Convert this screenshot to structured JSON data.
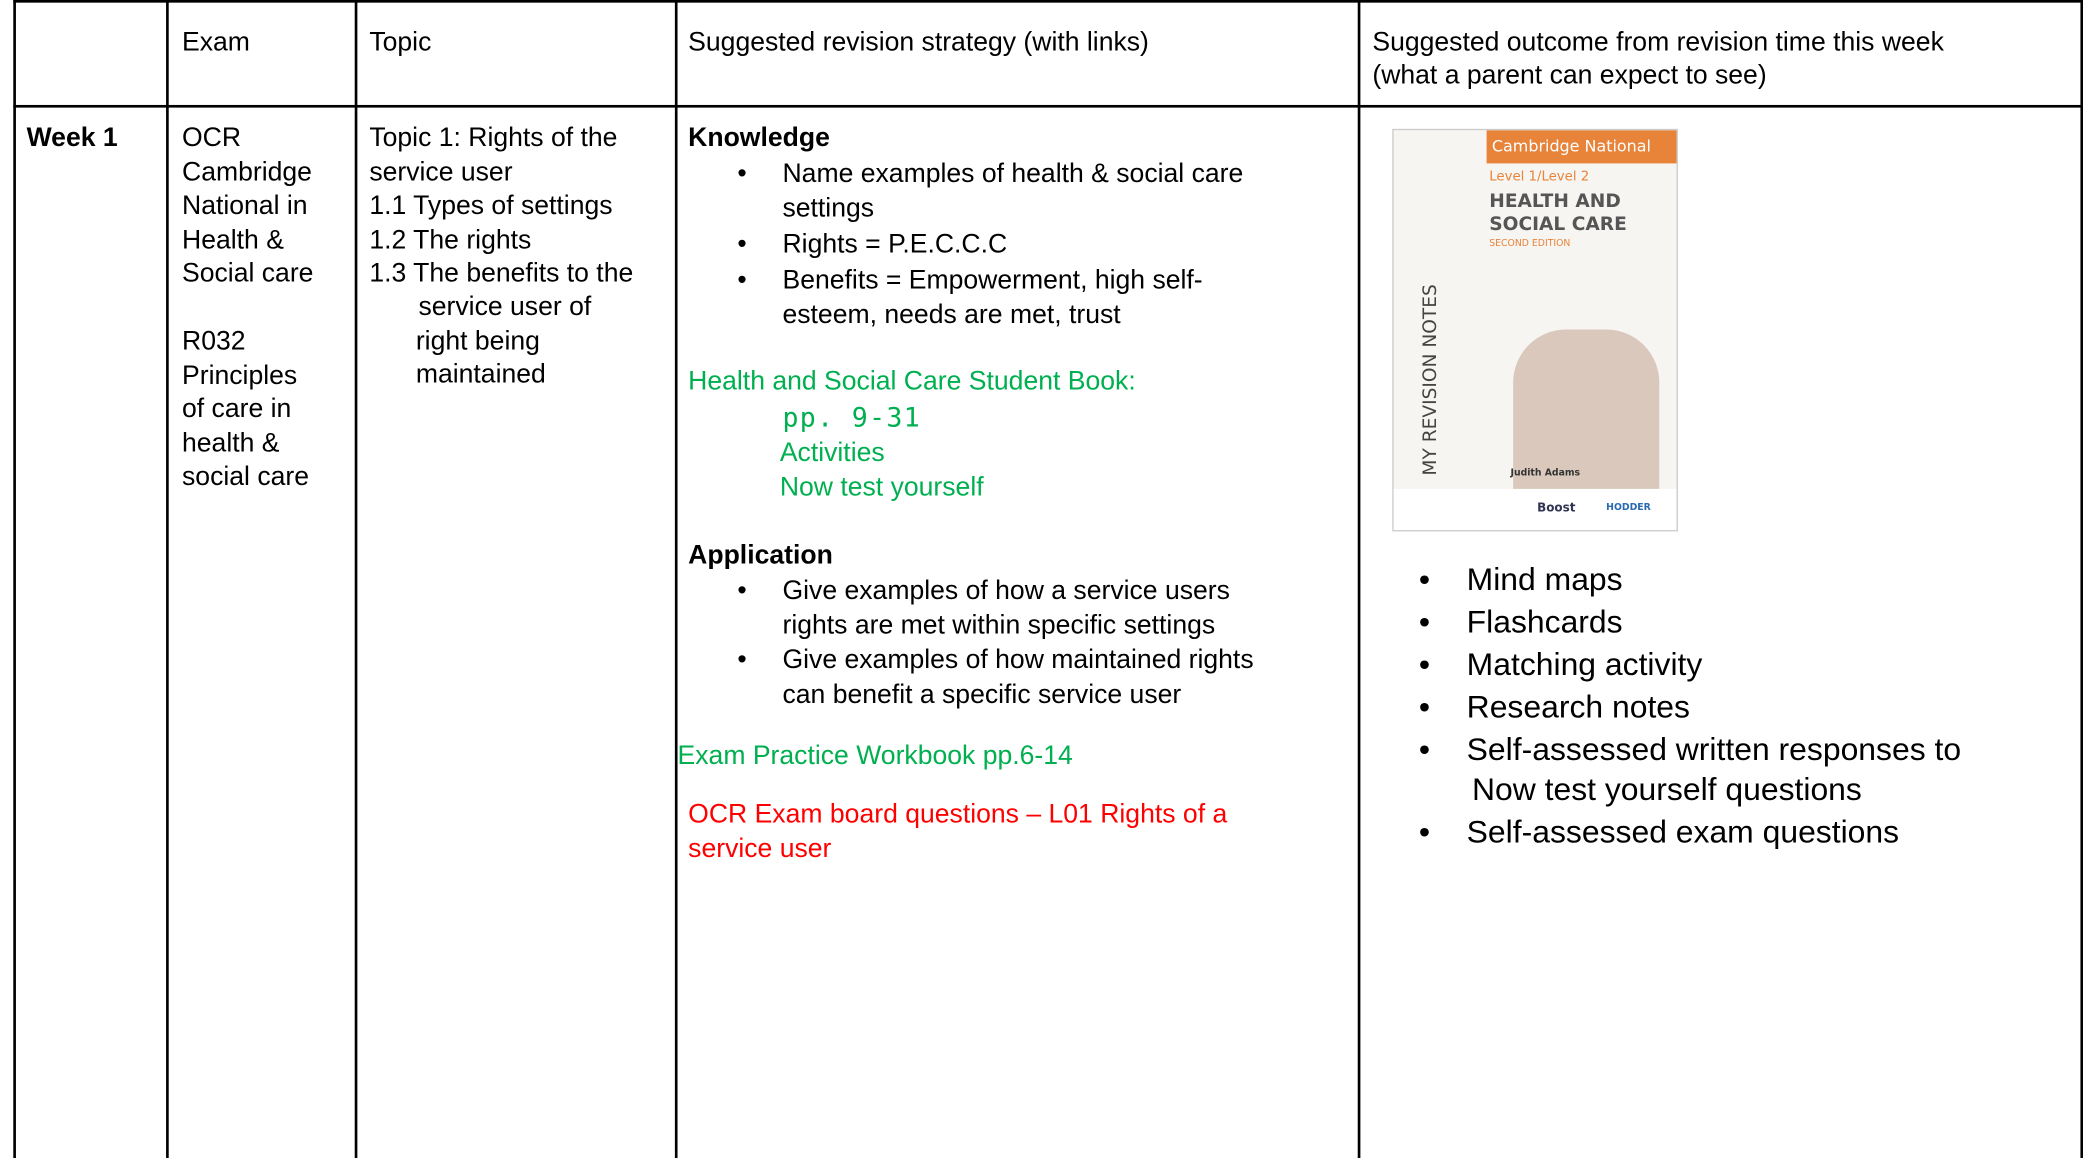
{
  "table": {
    "header": {
      "exam": "Exam",
      "topic": "Topic",
      "strategy": "Suggested revision strategy (with links)",
      "outcome": [
        "Suggested outcome from revision time this week",
        "(what a parent can expect to see)"
      ]
    },
    "rows": [
      {
        "week": "Week 1",
        "exam": [
          "OCR",
          "Cambridge",
          "National in",
          "Health &",
          "Social care"
        ],
        "exam_unit": [
          "R032",
          "Principles",
          "of care in",
          "health &",
          "social care"
        ],
        "topic": [
          "Topic 1: Rights of the",
          "service user",
          "1.1 Types of settings",
          "1.2 The rights",
          "1.3 The benefits to the"
        ],
        "topic_cont": [
          "service user of",
          "right being",
          "maintained"
        ],
        "strategy": {
          "knowledge_heading": "Knowledge",
          "knowledge": [
            [
              "Name examples of health & social care",
              "settings"
            ],
            [
              "Rights = P.E.C.C.C"
            ],
            [
              "Benefits = Empowerment, high self-",
              "esteem, needs are met, trust"
            ]
          ],
          "student_book": "Health and Social Care Student Book:",
          "pages": "pp. 9-31",
          "activities": "Activities",
          "now_test": "Now test yourself",
          "application_heading": "Application",
          "application": [
            [
              "Give examples of how a service users",
              "rights are met within specific settings"
            ],
            [
              "Give examples of how maintained rights",
              "can benefit a specific service user"
            ]
          ],
          "workbook": "Exam Practice Workbook pp.6-14",
          "exam_board": [
            "OCR Exam board questions – L01 Rights of a",
            "service user"
          ]
        },
        "outcome": {
          "book_cover": {
            "series": "Cambridge National",
            "level": "Level 1/Level 2",
            "title": [
              "HEALTH AND",
              "SOCIAL CARE"
            ],
            "edition": "SECOND EDITION",
            "spine": "MY REVISION NOTES",
            "author": "Judith Adams",
            "brand": "Boost",
            "publisher": "HODDER"
          },
          "items": [
            [
              "Mind maps"
            ],
            [
              "Flashcards"
            ],
            [
              "Matching activity"
            ],
            [
              "Research notes"
            ],
            [
              "Self-assessed written responses to",
              "Now test yourself questions"
            ],
            [
              "Self-assessed exam questions"
            ]
          ]
        }
      }
    ]
  }
}
